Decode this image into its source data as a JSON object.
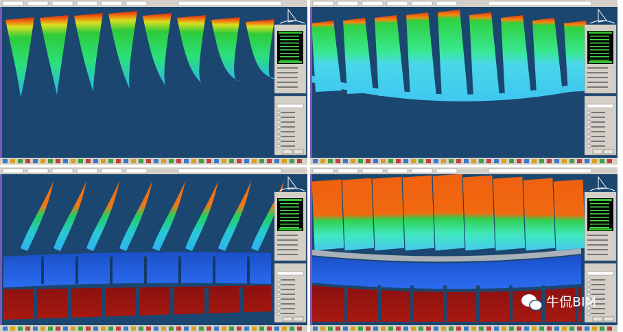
{
  "watermark": "牛侃BIM"
}
